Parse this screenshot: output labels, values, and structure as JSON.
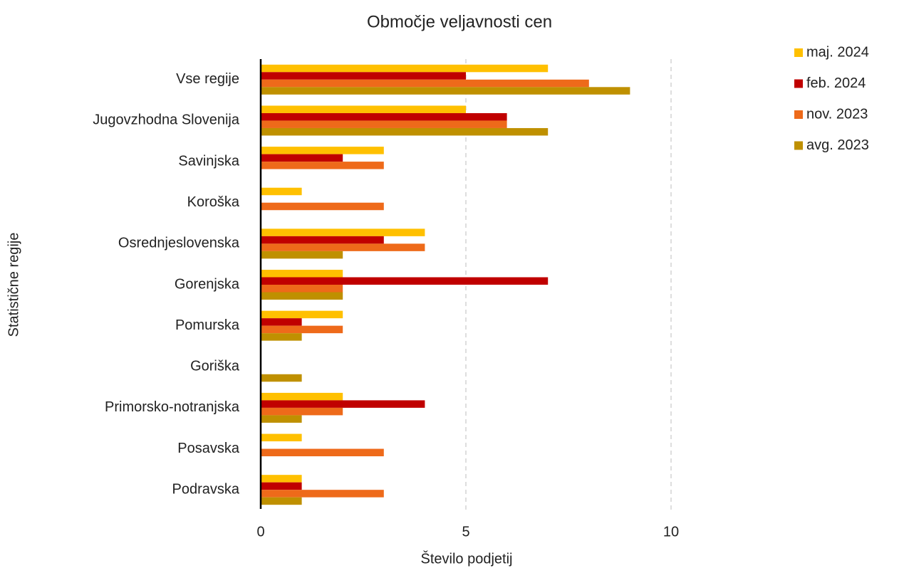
{
  "chart_data": {
    "type": "bar",
    "orientation": "horizontal",
    "title": "Območje veljavnosti cen",
    "x_label": "Število podjetij",
    "y_label": "Statistične regije",
    "categories": [
      "Vse regije",
      "Jugovzhodna Slovenija",
      "Savinjska",
      "Koroška",
      "Osrednjeslovenska",
      "Gorenjska",
      "Pomurska",
      "Goriška",
      "Primorsko-notranjska",
      "Posavska",
      "Podravska"
    ],
    "series": [
      {
        "name": "maj. 2024",
        "color": "#FFC000",
        "values": [
          7,
          5,
          3,
          1,
          4,
          2,
          2,
          0,
          2,
          1,
          1
        ]
      },
      {
        "name": "feb. 2024",
        "color": "#C00000",
        "values": [
          5,
          6,
          2,
          0,
          3,
          7,
          1,
          0,
          4,
          0,
          1
        ]
      },
      {
        "name": "nov. 2023",
        "color": "#EE6A1A",
        "values": [
          8,
          6,
          3,
          3,
          4,
          2,
          2,
          0,
          2,
          3,
          3
        ]
      },
      {
        "name": "avg. 2023",
        "color": "#BF9000",
        "values": [
          9,
          7,
          0,
          0,
          2,
          2,
          1,
          1,
          1,
          0,
          1
        ]
      }
    ],
    "xlim": [
      0,
      11
    ],
    "xticks": [
      0,
      5,
      10
    ],
    "grid": true,
    "legend": "top-right"
  }
}
